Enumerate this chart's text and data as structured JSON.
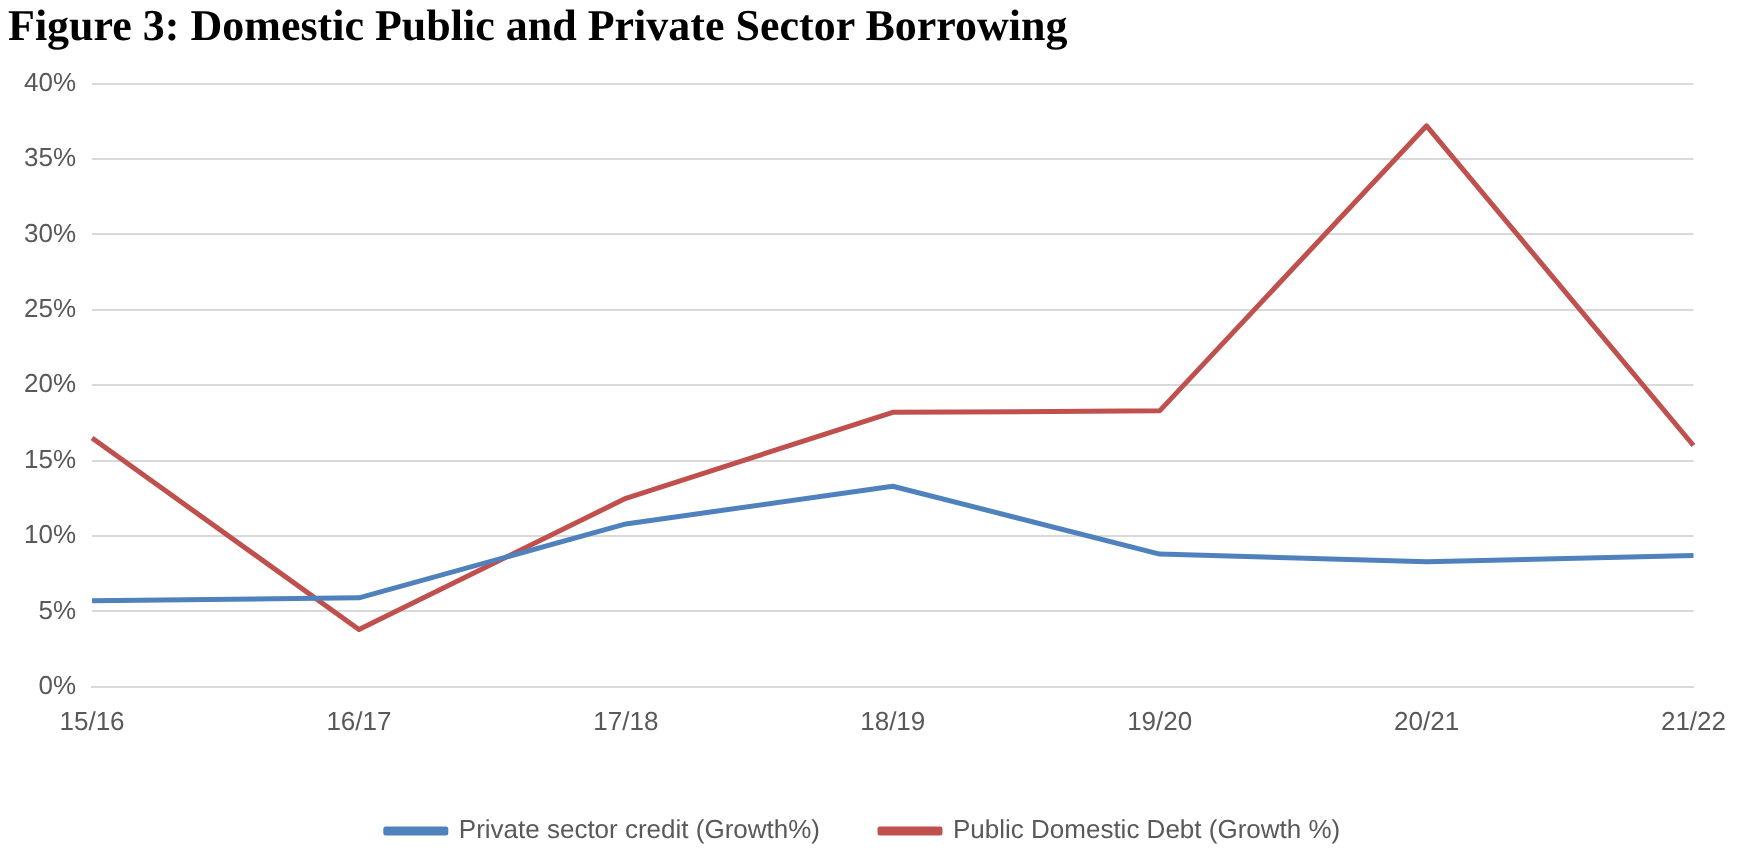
{
  "chart_data": {
    "type": "line",
    "title": "Figure 3: Domestic Public and Private Sector Borrowing",
    "categories": [
      "15/16",
      "16/17",
      "17/18",
      "18/19",
      "19/20",
      "20/21",
      "21/22"
    ],
    "series": [
      {
        "name": "Private sector credit (Growth%)",
        "color": "#4f81bd",
        "values": [
          5.7,
          5.9,
          10.8,
          13.3,
          8.8,
          8.3,
          8.7
        ]
      },
      {
        "name": "Public Domestic Debt (Growth %)",
        "color": "#c0504d",
        "values": [
          16.5,
          3.8,
          12.5,
          18.2,
          18.3,
          37.2,
          16.0
        ]
      }
    ],
    "ylim": [
      0,
      40
    ],
    "yticks": [
      {
        "value": 0,
        "label": "0%"
      },
      {
        "value": 5,
        "label": "5%"
      },
      {
        "value": 10,
        "label": "10%"
      },
      {
        "value": 15,
        "label": "15%"
      },
      {
        "value": 20,
        "label": "20%"
      },
      {
        "value": 25,
        "label": "25%"
      },
      {
        "value": 30,
        "label": "30%"
      },
      {
        "value": 35,
        "label": "35%"
      },
      {
        "value": 40,
        "label": "40%"
      }
    ],
    "grid": "y",
    "legend": "bottom",
    "marker": "none",
    "line_style": "solid"
  }
}
